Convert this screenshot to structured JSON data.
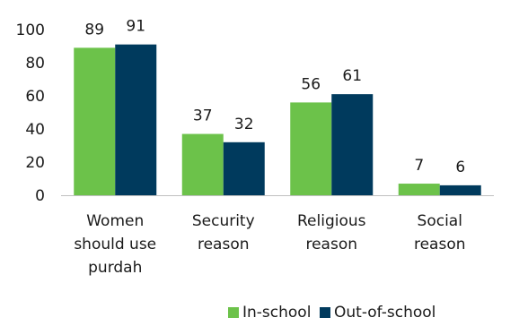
{
  "chart_data": {
    "type": "bar",
    "title": "",
    "xlabel": "",
    "ylabel": "",
    "ylim": [
      0,
      100
    ],
    "yticks": [
      0,
      20,
      40,
      60,
      80,
      100
    ],
    "grid": false,
    "legend_position": "bottom",
    "categories": [
      [
        "Women",
        "should use",
        "purdah"
      ],
      [
        "Security",
        "reason"
      ],
      [
        "Religious",
        "reason"
      ],
      [
        "Social",
        "reason"
      ]
    ],
    "series": [
      {
        "name": "In-school",
        "color": "#6cc24a",
        "values": [
          89,
          37,
          56,
          7
        ]
      },
      {
        "name": "Out-of-school",
        "color": "#003a5d",
        "values": [
          91,
          32,
          61,
          6
        ]
      }
    ]
  }
}
